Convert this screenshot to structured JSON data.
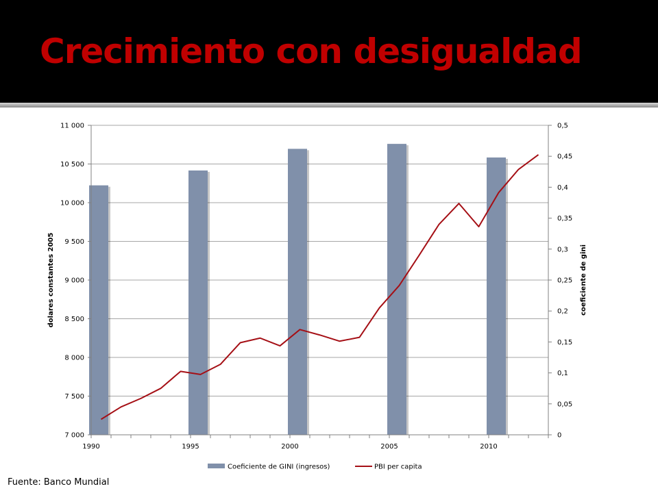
{
  "slide": {
    "title": "Crecimiento con desigualdad",
    "source": "Fuente: Banco Mundial"
  },
  "colors": {
    "header_bg": "#000000",
    "title": "#c00000",
    "bars": "#8090aa",
    "line": "#a50f15"
  },
  "chart_data": {
    "type": "bar+line",
    "x_range": [
      1990,
      2013
    ],
    "x_ticks": [
      1990,
      1995,
      2000,
      2005,
      2010
    ],
    "x_tick_labels": [
      "1990",
      "1995",
      "2000",
      "2005",
      "2010"
    ],
    "y_left": {
      "label": "dolares constantes 2005",
      "range": [
        7000,
        11000
      ],
      "ticks": [
        7000,
        7500,
        8000,
        8500,
        9000,
        9500,
        10000,
        10500,
        11000
      ],
      "tick_labels": [
        "7 000",
        "7 500",
        "8 000",
        "8 500",
        "9 000",
        "9 500",
        "10 000",
        "10 500",
        "11 000"
      ]
    },
    "y_right": {
      "label": "coeficiente de gini",
      "range": [
        0,
        0.5
      ],
      "ticks": [
        0,
        0.05,
        0.1,
        0.15,
        0.2,
        0.25,
        0.3,
        0.35,
        0.4,
        0.45,
        0.5
      ],
      "tick_labels": [
        "0",
        "0,05",
        "0,1",
        "0,15",
        "0,2",
        "0,25",
        "0,3",
        "0,35",
        "0,4",
        "0,45",
        "0,5"
      ]
    },
    "grid": true,
    "legend_position": "bottom",
    "series": [
      {
        "name": "Coeficiente de GINI (ingresos)",
        "kind": "bar",
        "axis": "right",
        "x": [
          1990,
          1995,
          2000,
          2005,
          2010
        ],
        "values": [
          0.403,
          0.427,
          0.462,
          0.47,
          0.448
        ]
      },
      {
        "name": "PBI per capita",
        "kind": "line",
        "axis": "left",
        "x": [
          1990,
          1991,
          1992,
          1993,
          1994,
          1995,
          1996,
          1997,
          1998,
          1999,
          2000,
          2001,
          2002,
          2003,
          2004,
          2005,
          2006,
          2007,
          2008,
          2009,
          2010,
          2011,
          2012
        ],
        "values": [
          7200,
          7360,
          7470,
          7600,
          7820,
          7780,
          7910,
          8190,
          8250,
          8150,
          8360,
          8290,
          8210,
          8260,
          8640,
          8930,
          9320,
          9720,
          9990,
          9690,
          10130,
          10430,
          10620
        ]
      }
    ]
  }
}
